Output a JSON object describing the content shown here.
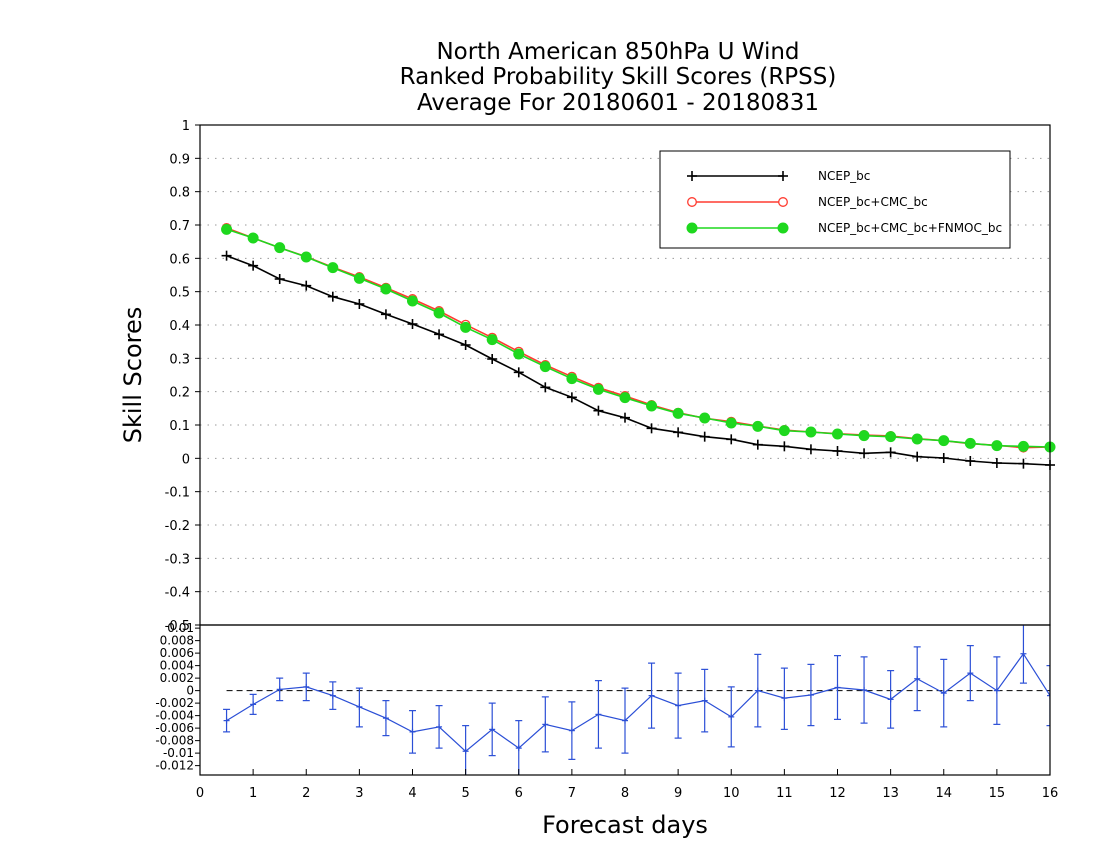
{
  "chart_data": {
    "type": "line",
    "title": [
      "North American 850hPa U Wind",
      "Ranked Probability Skill Scores (RPSS)",
      "Average For 20180601 - 20180831"
    ],
    "xlabel": "Forecast days",
    "ylabel": "Skill Scores",
    "xlim": [
      0,
      16
    ],
    "ylim": [
      -0.5,
      1
    ],
    "grid": true,
    "legend_position": "top-right",
    "x_ticks": [
      "0",
      "1",
      "2",
      "3",
      "4",
      "5",
      "6",
      "7",
      "8",
      "9",
      "10",
      "11",
      "12",
      "13",
      "14",
      "15",
      "16"
    ],
    "y_ticks": [
      "1",
      "0.9",
      "0.8",
      "0.7",
      "0.6",
      "0.5",
      "0.4",
      "0.3",
      "0.2",
      "0.1",
      "0",
      "-0.1",
      "-0.2",
      "-0.3",
      "-0.4",
      "-0.5"
    ],
    "x": [
      0.5,
      1,
      1.5,
      2,
      2.5,
      3,
      3.5,
      4,
      4.5,
      5,
      5.5,
      6,
      6.5,
      7,
      7.5,
      8,
      8.5,
      9,
      9.5,
      10,
      10.5,
      11,
      11.5,
      12,
      12.5,
      13,
      13.5,
      14,
      14.5,
      15,
      15.5,
      16
    ],
    "series": [
      {
        "name": "NCEP_bc",
        "color": "#000000",
        "marker": "plus",
        "values": [
          0.608,
          0.578,
          0.538,
          0.518,
          0.485,
          0.463,
          0.432,
          0.403,
          0.372,
          0.34,
          0.298,
          0.258,
          0.213,
          0.183,
          0.143,
          0.122,
          0.09,
          0.078,
          0.065,
          0.057,
          0.041,
          0.036,
          0.027,
          0.022,
          0.015,
          0.018,
          0.005,
          0.001,
          -0.008,
          -0.014,
          -0.016,
          -0.02
        ]
      },
      {
        "name": "NCEP_bc+CMC_bc",
        "color": "#ff3b30",
        "marker": "open-circle",
        "values": [
          0.691,
          0.661,
          0.632,
          0.605,
          0.573,
          0.544,
          0.512,
          0.478,
          0.442,
          0.401,
          0.362,
          0.32,
          0.28,
          0.245,
          0.212,
          0.187,
          0.16,
          0.137,
          0.12,
          0.11,
          0.097,
          0.085,
          0.079,
          0.074,
          0.07,
          0.067,
          0.059,
          0.053,
          0.044,
          0.039,
          0.032,
          0.034
        ]
      },
      {
        "name": "NCEP_bc+CMC_bc+FNMOC_bc",
        "color": "#1ed81e",
        "marker": "filled-circle",
        "values": [
          0.687,
          0.661,
          0.632,
          0.604,
          0.572,
          0.54,
          0.508,
          0.472,
          0.436,
          0.393,
          0.356,
          0.313,
          0.275,
          0.239,
          0.207,
          0.182,
          0.157,
          0.135,
          0.121,
          0.106,
          0.096,
          0.083,
          0.079,
          0.073,
          0.068,
          0.065,
          0.058,
          0.053,
          0.045,
          0.038,
          0.036,
          0.034
        ]
      }
    ],
    "difference_panel": {
      "ylim": [
        -0.0135,
        0.0105
      ],
      "y_ticks": [
        "0.01",
        "0.008",
        "0.006",
        "0.004",
        "0.002",
        "0",
        "-0.002",
        "-0.004",
        "-0.006",
        "-0.008",
        "-0.01",
        "-0.012"
      ],
      "zero_line": "dashed",
      "color": "#2b4fd6",
      "values": [
        -0.0048,
        -0.0022,
        0.0002,
        0.0006,
        -0.0008,
        -0.0026,
        -0.0044,
        -0.0066,
        -0.0058,
        -0.0097,
        -0.0062,
        -0.0092,
        -0.0054,
        -0.0064,
        -0.0038,
        -0.0048,
        -0.0008,
        -0.0024,
        -0.0016,
        -0.0042,
        0.0,
        -0.0012,
        -0.0007,
        0.0005,
        0.0001,
        -0.0014,
        0.0019,
        -0.0004,
        0.0028,
        0.0,
        0.0059,
        -0.0008
      ],
      "error_lo": [
        -0.0066,
        -0.0038,
        -0.0016,
        -0.0016,
        -0.003,
        -0.0058,
        -0.0072,
        -0.01,
        -0.0092,
        -0.0138,
        -0.0104,
        -0.0136,
        -0.0098,
        -0.011,
        -0.0092,
        -0.01,
        -0.006,
        -0.0076,
        -0.0066,
        -0.009,
        -0.0058,
        -0.0062,
        -0.0056,
        -0.0046,
        -0.0052,
        -0.006,
        -0.0032,
        -0.0058,
        -0.0016,
        -0.0054,
        0.0012,
        -0.0056
      ],
      "error_hi": [
        -0.003,
        -0.0006,
        0.002,
        0.0028,
        0.0014,
        0.0004,
        -0.0016,
        -0.0032,
        -0.0024,
        -0.0056,
        -0.002,
        -0.0048,
        -0.001,
        -0.0018,
        0.0016,
        0.0004,
        0.0044,
        0.0028,
        0.0034,
        0.0006,
        0.0058,
        0.0036,
        0.0042,
        0.0056,
        0.0054,
        0.0032,
        0.007,
        0.005,
        0.0072,
        0.0054,
        0.0108,
        0.004
      ]
    }
  }
}
